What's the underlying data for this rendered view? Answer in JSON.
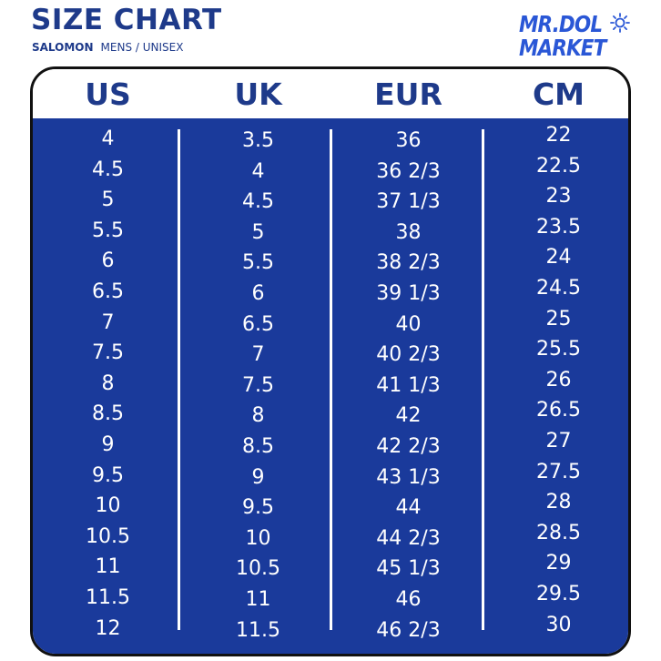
{
  "header": {
    "title": "SIZE CHART",
    "brand": "SALOMON",
    "category": "MENS / UNISEX"
  },
  "logo": {
    "line1": "MR.DOL",
    "line2": "MARKET",
    "icon": "sun-icon",
    "color": "#2a57d6"
  },
  "colors": {
    "navy": "#1a3a9b",
    "heading": "#1e3a8a",
    "text_on_navy": "#ffffff"
  },
  "table": {
    "columns": [
      "US",
      "UK",
      "EUR",
      "CM"
    ],
    "rows": [
      [
        "4",
        "3.5",
        "36",
        "22"
      ],
      [
        "4.5",
        "4",
        "36 2/3",
        "22.5"
      ],
      [
        "5",
        "4.5",
        "37 1/3",
        "23"
      ],
      [
        "5.5",
        "5",
        "38",
        "23.5"
      ],
      [
        "6",
        "5.5",
        "38 2/3",
        "24"
      ],
      [
        "6.5",
        "6",
        "39 1/3",
        "24.5"
      ],
      [
        "7",
        "6.5",
        "40",
        "25"
      ],
      [
        "7.5",
        "7",
        "40 2/3",
        "25.5"
      ],
      [
        "8",
        "7.5",
        "41 1/3",
        "26"
      ],
      [
        "8.5",
        "8",
        "42",
        "26.5"
      ],
      [
        "9",
        "8.5",
        "42 2/3",
        "27"
      ],
      [
        "9.5",
        "9",
        "43 1/3",
        "27.5"
      ],
      [
        "10",
        "9.5",
        "44",
        "28"
      ],
      [
        "10.5",
        "10",
        "44 2/3",
        "28.5"
      ],
      [
        "11",
        "10.5",
        "45 1/3",
        "29"
      ],
      [
        "11.5",
        "11",
        "46",
        "29.5"
      ],
      [
        "12",
        "11.5",
        "46 2/3",
        "30"
      ]
    ]
  }
}
